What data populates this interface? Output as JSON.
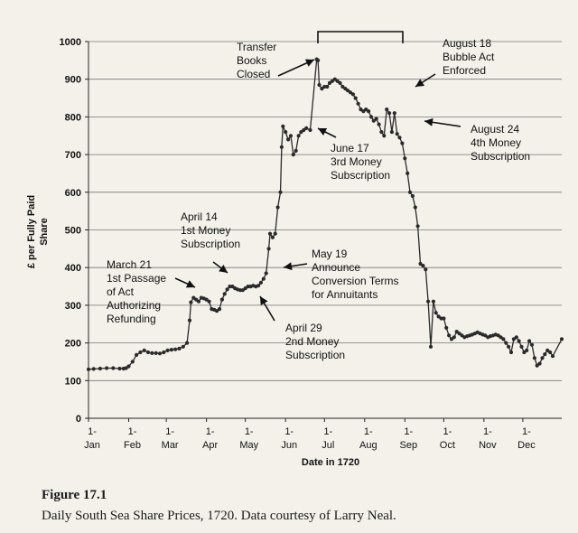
{
  "chart_data": {
    "type": "line",
    "xlabel": "Date in 1720",
    "ylabel": [
      "£ per Fully Paid",
      "Share"
    ],
    "ylim": [
      0,
      1000
    ],
    "yticks": [
      0,
      100,
      200,
      300,
      400,
      500,
      600,
      700,
      800,
      900,
      1000
    ],
    "ytick_labels": [
      "0",
      "100",
      "200",
      "300",
      "400",
      "500",
      "600",
      "700",
      "800",
      "900",
      "1000"
    ],
    "xlim_day": [
      1,
      366
    ],
    "xticks": [
      {
        "day": 1,
        "top": "1-",
        "bottom": "Jan"
      },
      {
        "day": 32,
        "top": "1-",
        "bottom": "Feb"
      },
      {
        "day": 61,
        "top": "1-",
        "bottom": "Mar"
      },
      {
        "day": 92,
        "top": "1-",
        "bottom": "Apr"
      },
      {
        "day": 122,
        "top": "1-",
        "bottom": "May"
      },
      {
        "day": 153,
        "top": "1-",
        "bottom": "Jun"
      },
      {
        "day": 183,
        "top": "1-",
        "bottom": "Jul"
      },
      {
        "day": 214,
        "top": "1-",
        "bottom": "Aug"
      },
      {
        "day": 245,
        "top": "1-",
        "bottom": "Sep"
      },
      {
        "day": 275,
        "top": "1-",
        "bottom": "Oct"
      },
      {
        "day": 306,
        "top": "1-",
        "bottom": "Nov"
      },
      {
        "day": 336,
        "top": "1-",
        "bottom": "Dec"
      }
    ],
    "grid": "horizontal",
    "series": [
      {
        "color": "#2a2a2a",
        "points": [
          [
            1,
            130
          ],
          [
            5,
            131
          ],
          [
            10,
            132
          ],
          [
            15,
            133
          ],
          [
            20,
            133
          ],
          [
            25,
            132
          ],
          [
            28,
            132
          ],
          [
            30,
            133
          ],
          [
            32,
            138
          ],
          [
            35,
            150
          ],
          [
            38,
            168
          ],
          [
            41,
            175
          ],
          [
            44,
            180
          ],
          [
            47,
            175
          ],
          [
            50,
            173
          ],
          [
            53,
            173
          ],
          [
            56,
            172
          ],
          [
            59,
            175
          ],
          [
            62,
            180
          ],
          [
            65,
            182
          ],
          [
            68,
            183
          ],
          [
            71,
            185
          ],
          [
            74,
            190
          ],
          [
            77,
            200
          ],
          [
            79,
            260
          ],
          [
            80,
            308
          ],
          [
            82,
            320
          ],
          [
            84,
            315
          ],
          [
            86,
            310
          ],
          [
            88,
            320
          ],
          [
            90,
            318
          ],
          [
            92,
            315
          ],
          [
            94,
            310
          ],
          [
            96,
            290
          ],
          [
            98,
            288
          ],
          [
            100,
            285
          ],
          [
            102,
            290
          ],
          [
            104,
            315
          ],
          [
            106,
            330
          ],
          [
            108,
            342
          ],
          [
            110,
            350
          ],
          [
            112,
            350
          ],
          [
            114,
            345
          ],
          [
            116,
            342
          ],
          [
            118,
            340
          ],
          [
            120,
            340
          ],
          [
            122,
            345
          ],
          [
            124,
            350
          ],
          [
            126,
            350
          ],
          [
            128,
            352
          ],
          [
            130,
            350
          ],
          [
            132,
            352
          ],
          [
            134,
            360
          ],
          [
            136,
            370
          ],
          [
            138,
            385
          ],
          [
            140,
            450
          ],
          [
            141,
            490
          ],
          [
            143,
            480
          ],
          [
            145,
            490
          ],
          [
            147,
            560
          ],
          [
            149,
            600
          ],
          [
            150,
            720
          ],
          [
            151,
            775
          ],
          [
            153,
            760
          ],
          [
            155,
            740
          ],
          [
            157,
            750
          ],
          [
            159,
            700
          ],
          [
            161,
            710
          ],
          [
            163,
            750
          ],
          [
            165,
            760
          ],
          [
            167,
            765
          ],
          [
            169,
            770
          ],
          [
            172,
            765
          ],
          [
            177,
            953
          ],
          [
            178,
            950
          ],
          [
            179,
            885
          ],
          [
            181,
            875
          ],
          [
            183,
            880
          ],
          [
            185,
            880
          ],
          [
            187,
            890
          ],
          [
            189,
            895
          ],
          [
            191,
            900
          ],
          [
            193,
            895
          ],
          [
            195,
            890
          ],
          [
            197,
            880
          ],
          [
            199,
            875
          ],
          [
            201,
            870
          ],
          [
            203,
            865
          ],
          [
            205,
            860
          ],
          [
            207,
            850
          ],
          [
            209,
            835
          ],
          [
            211,
            820
          ],
          [
            213,
            815
          ],
          [
            215,
            820
          ],
          [
            217,
            815
          ],
          [
            219,
            800
          ],
          [
            221,
            790
          ],
          [
            223,
            795
          ],
          [
            225,
            780
          ],
          [
            227,
            760
          ],
          [
            229,
            750
          ],
          [
            231,
            820
          ],
          [
            233,
            810
          ],
          [
            235,
            760
          ],
          [
            237,
            810
          ],
          [
            239,
            755
          ],
          [
            241,
            745
          ],
          [
            243,
            730
          ],
          [
            245,
            690
          ],
          [
            247,
            650
          ],
          [
            249,
            600
          ],
          [
            251,
            590
          ],
          [
            253,
            560
          ],
          [
            255,
            510
          ],
          [
            257,
            410
          ],
          [
            259,
            405
          ],
          [
            261,
            395
          ],
          [
            263,
            310
          ],
          [
            265,
            190
          ],
          [
            267,
            310
          ],
          [
            269,
            280
          ],
          [
            271,
            270
          ],
          [
            273,
            265
          ],
          [
            275,
            265
          ],
          [
            277,
            240
          ],
          [
            279,
            220
          ],
          [
            281,
            210
          ],
          [
            283,
            215
          ],
          [
            285,
            230
          ],
          [
            287,
            225
          ],
          [
            289,
            220
          ],
          [
            291,
            215
          ],
          [
            293,
            218
          ],
          [
            295,
            220
          ],
          [
            297,
            222
          ],
          [
            299,
            225
          ],
          [
            301,
            228
          ],
          [
            303,
            225
          ],
          [
            305,
            222
          ],
          [
            307,
            220
          ],
          [
            309,
            215
          ],
          [
            311,
            218
          ],
          [
            313,
            220
          ],
          [
            315,
            222
          ],
          [
            317,
            220
          ],
          [
            319,
            215
          ],
          [
            321,
            210
          ],
          [
            323,
            200
          ],
          [
            325,
            190
          ],
          [
            327,
            175
          ],
          [
            329,
            210
          ],
          [
            331,
            215
          ],
          [
            333,
            205
          ],
          [
            335,
            190
          ],
          [
            337,
            175
          ],
          [
            339,
            180
          ],
          [
            341,
            205
          ],
          [
            343,
            195
          ],
          [
            345,
            160
          ],
          [
            347,
            140
          ],
          [
            349,
            145
          ],
          [
            351,
            160
          ],
          [
            353,
            170
          ],
          [
            355,
            180
          ],
          [
            357,
            175
          ],
          [
            359,
            165
          ],
          [
            366,
            210
          ]
        ]
      }
    ],
    "annotations": [
      {
        "lines": [
          "Transfer",
          "Books",
          "Closed"
        ]
      },
      {
        "lines": [
          "August 18",
          "Bubble Act",
          "Enforced"
        ]
      },
      {
        "lines": [
          "August 24",
          "4th Money",
          "Subscription"
        ]
      },
      {
        "lines": [
          "June 17",
          "3rd Money",
          "Subscription"
        ]
      },
      {
        "lines": [
          "April 14",
          "1st Money",
          "Subscription"
        ]
      },
      {
        "lines": [
          "May 19",
          "Announce",
          "Conversion Terms",
          "for Annuitants"
        ]
      },
      {
        "lines": [
          "March 21",
          "1st Passage",
          "of Act",
          "Authorizing",
          "Refunding"
        ]
      },
      {
        "lines": [
          "April 29",
          "2nd Money",
          "Subscription"
        ]
      }
    ]
  },
  "caption": {
    "title": "Figure 17.1",
    "text": "Daily South Sea Share Prices, 1720. Data courtesy of Larry Neal."
  }
}
